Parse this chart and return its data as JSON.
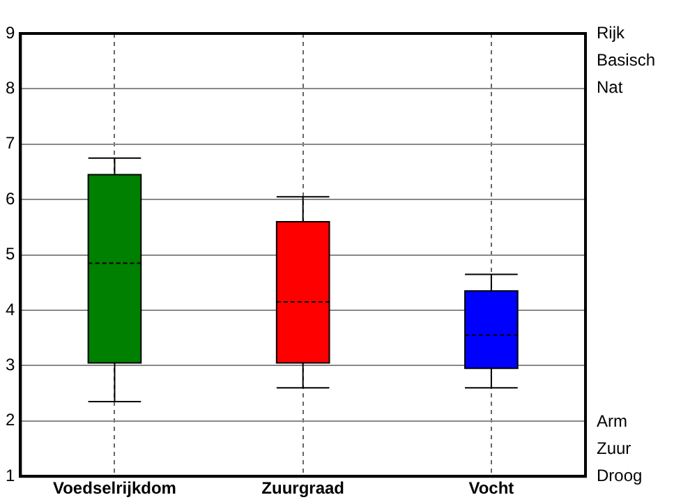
{
  "chart_data": {
    "type": "box",
    "categories": [
      "Voedselrijkdom",
      "Zuurgraad",
      "Vocht"
    ],
    "boxes": [
      {
        "low": 2.35,
        "q1": 3.05,
        "median": 4.85,
        "q3": 6.45,
        "high": 6.75
      },
      {
        "low": 2.6,
        "q1": 3.05,
        "median": 4.15,
        "q3": 5.6,
        "high": 6.05
      },
      {
        "low": 2.6,
        "q1": 2.95,
        "median": 3.55,
        "q3": 4.35,
        "high": 4.65
      }
    ],
    "colors": [
      "#008000",
      "#ff0000",
      "#0000ff"
    ],
    "ylim": [
      1,
      9
    ],
    "yticks": [
      1,
      2,
      3,
      4,
      5,
      6,
      7,
      8,
      9
    ],
    "grid": true,
    "annotations": [
      "Rijk",
      "Basisch",
      "Nat",
      "Arm",
      "Zuur",
      "Droog"
    ]
  }
}
